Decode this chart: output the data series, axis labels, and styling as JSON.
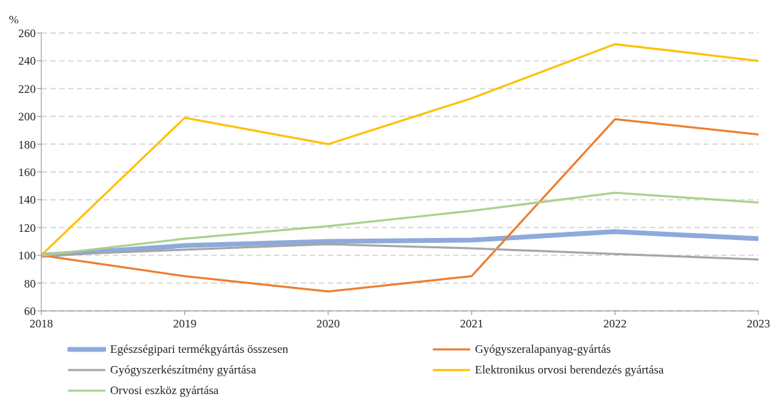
{
  "chart_data": {
    "type": "line",
    "ylabel": "%",
    "x": [
      2018,
      2019,
      2020,
      2021,
      2022,
      2023
    ],
    "xlim": [
      2018,
      2023
    ],
    "xticks": [
      2018,
      2019,
      2020,
      2021,
      2022,
      2023
    ],
    "ylim": [
      60,
      260
    ],
    "yticks": [
      60,
      80,
      100,
      120,
      140,
      160,
      180,
      200,
      220,
      240,
      260
    ],
    "grid": "y",
    "legend": "bottom",
    "marker": "none",
    "series": [
      {
        "name": "Egészségipari termékgyártás összesen",
        "color": "#8eaadb",
        "values": [
          100,
          107,
          110,
          111,
          117,
          112
        ]
      },
      {
        "name": "Gyógyszeralapanyag-gyártás",
        "color": "#ed7d31",
        "values": [
          100,
          85,
          74,
          85,
          198,
          187
        ]
      },
      {
        "name": "Gyógyszerkészítmény gyártása",
        "color": "#a5a5a5",
        "values": [
          100,
          104,
          108,
          105,
          101,
          97
        ]
      },
      {
        "name": "Elektronikus orvosi berendezés gyártása",
        "color": "#ffc000",
        "values": [
          100,
          199,
          180,
          213,
          252,
          240
        ]
      },
      {
        "name": "Orvosi eszköz gyártása",
        "color": "#a9d18e",
        "values": [
          100,
          112,
          121,
          132,
          145,
          138
        ]
      }
    ]
  }
}
